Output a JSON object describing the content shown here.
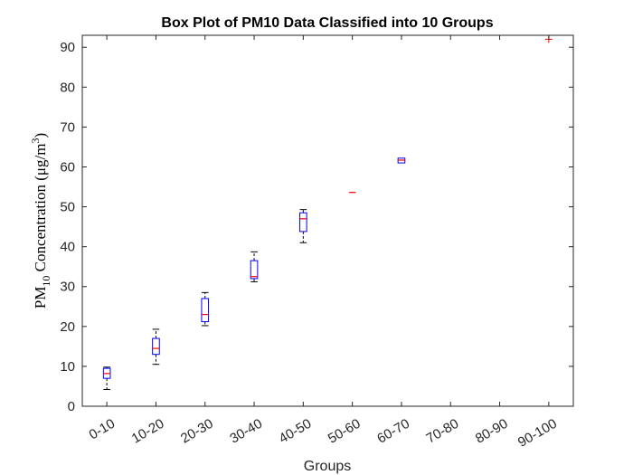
{
  "chart_data": {
    "type": "box",
    "title": "Box Plot of PM10 Data Classified into 10 Groups",
    "xlabel": "Groups",
    "ylabel": {
      "pm": "PM",
      "sub": "10",
      "main": " Concentration (μg/m",
      "sup": "3",
      "close": ")"
    },
    "ylim": [
      0,
      93
    ],
    "yticks": [
      0,
      10,
      20,
      30,
      40,
      50,
      60,
      70,
      80,
      90
    ],
    "categories": [
      "0-10",
      "10-20",
      "20-30",
      "30-40",
      "40-50",
      "50-60",
      "60-70",
      "70-80",
      "80-90",
      "90-100"
    ],
    "boxes": [
      {
        "group": "0-10",
        "min": 4.2,
        "q1": 7.0,
        "median": 8.2,
        "q3": 9.5,
        "max": 9.8,
        "outliers": []
      },
      {
        "group": "10-20",
        "min": 10.5,
        "q1": 13.0,
        "median": 14.5,
        "q3": 17.0,
        "max": 19.3,
        "outliers": []
      },
      {
        "group": "20-30",
        "min": 20.2,
        "q1": 21.2,
        "median": 23.0,
        "q3": 27.0,
        "max": 28.5,
        "outliers": []
      },
      {
        "group": "30-40",
        "min": 31.2,
        "q1": 32.0,
        "median": 32.5,
        "q3": 36.5,
        "max": 38.7,
        "outliers": []
      },
      {
        "group": "40-50",
        "min": 41.0,
        "q1": 43.8,
        "median": 47.0,
        "q3": 48.5,
        "max": 49.3,
        "outliers": []
      },
      {
        "group": "50-60",
        "min": 53.6,
        "q1": 53.6,
        "median": 53.6,
        "q3": 53.6,
        "max": 53.6,
        "outliers": []
      },
      {
        "group": "60-70",
        "min": 61.0,
        "q1": 61.0,
        "median": 61.7,
        "q3": 62.2,
        "max": 62.2,
        "outliers": []
      },
      {
        "group": "70-80",
        "empty": true
      },
      {
        "group": "80-90",
        "empty": true
      },
      {
        "group": "90-100",
        "min": 92.0,
        "q1": 92.0,
        "median": 92.0,
        "q3": 92.0,
        "max": 92.0,
        "outliers": [
          92.0
        ]
      }
    ],
    "colors": {
      "box": "#0000ff",
      "median": "#ff0000",
      "whisker": "#000000",
      "outlier": "#ff0000",
      "axis": "#262626"
    },
    "grid": false,
    "legend": "none"
  }
}
